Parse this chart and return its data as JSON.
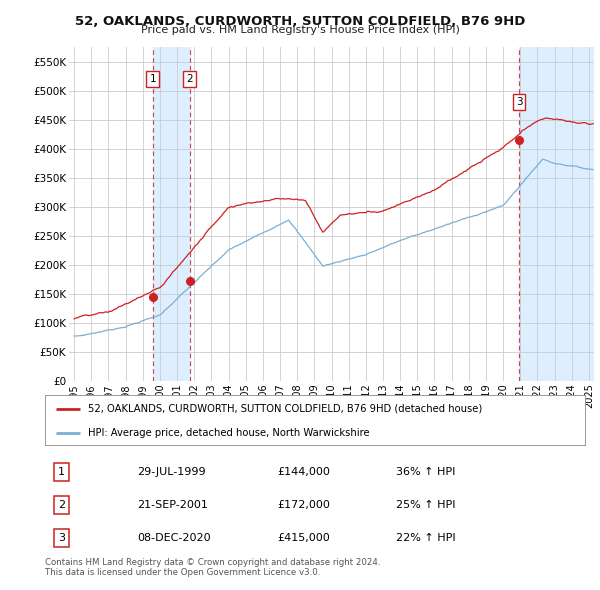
{
  "title": "52, OAKLANDS, CURDWORTH, SUTTON COLDFIELD, B76 9HD",
  "subtitle": "Price paid vs. HM Land Registry's House Price Index (HPI)",
  "ylabel_ticks": [
    "£0",
    "£50K",
    "£100K",
    "£150K",
    "£200K",
    "£250K",
    "£300K",
    "£350K",
    "£400K",
    "£450K",
    "£500K",
    "£550K"
  ],
  "ytick_values": [
    0,
    50000,
    100000,
    150000,
    200000,
    250000,
    300000,
    350000,
    400000,
    450000,
    500000,
    550000
  ],
  "ylim": [
    0,
    575000
  ],
  "xlim_start": 1994.7,
  "xlim_end": 2025.3,
  "sale_dates": [
    1999.58,
    2001.73,
    2020.93
  ],
  "sale_prices": [
    144000,
    172000,
    415000
  ],
  "sale_labels": [
    "1",
    "2",
    "3"
  ],
  "hpi_color": "#7bafd4",
  "price_color": "#cc2222",
  "legend_label_price": "52, OAKLANDS, CURDWORTH, SUTTON COLDFIELD, B76 9HD (detached house)",
  "legend_label_hpi": "HPI: Average price, detached house, North Warwickshire",
  "table_rows": [
    {
      "num": "1",
      "date": "29-JUL-1999",
      "price": "£144,000",
      "change": "36% ↑ HPI"
    },
    {
      "num": "2",
      "date": "21-SEP-2001",
      "price": "£172,000",
      "change": "25% ↑ HPI"
    },
    {
      "num": "3",
      "date": "08-DEC-2020",
      "price": "£415,000",
      "change": "22% ↑ HPI"
    }
  ],
  "footnote1": "Contains HM Land Registry data © Crown copyright and database right 2024.",
  "footnote2": "This data is licensed under the Open Government Licence v3.0.",
  "background_color": "#ffffff",
  "grid_color": "#cccccc",
  "shade_color": "#ddeeff"
}
